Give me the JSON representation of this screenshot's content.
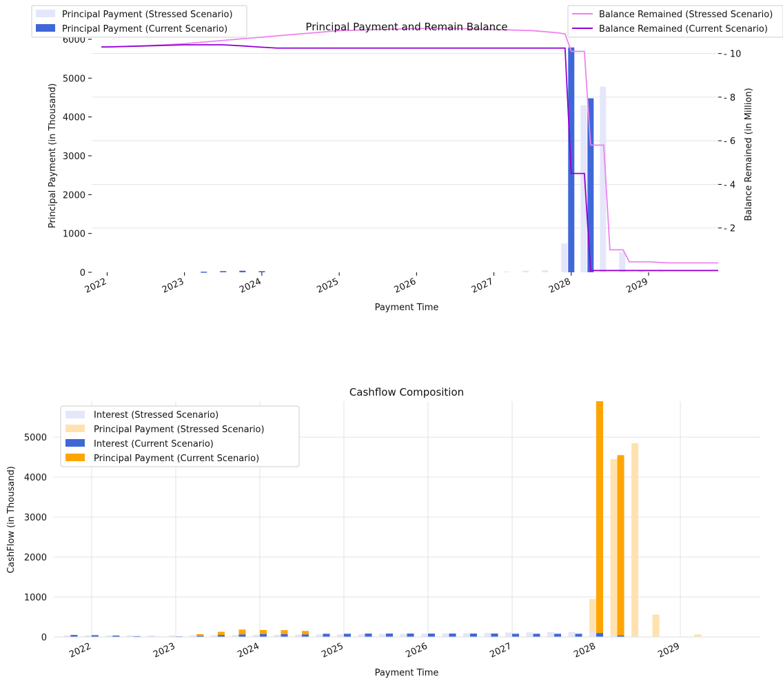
{
  "colors": {
    "stressed_principal": "#e4e6fa",
    "current_principal": "#3f67d8",
    "stressed_balance": "#ee82ee",
    "current_balance": "#9400d3",
    "stressed_interest": "#e4e6fa",
    "current_interest": "#3f67d8",
    "stressed_principal_cf": "#ffe2b0",
    "current_principal_cf": "#ffa500"
  },
  "chart_data": [
    {
      "type": "bar",
      "title": "Principal Payment and Remain Balance",
      "xlabel": "Payment Time",
      "ylabel": "Principal Payment (in Thousand)",
      "ylabel_right": "Balance Remained (in Million)",
      "ylim": [
        0,
        6000
      ],
      "ylim_right": [
        0,
        11
      ],
      "xlim": [
        2021.8,
        2029.9
      ],
      "x_ticks": [
        "2022",
        "2023",
        "2024",
        "2025",
        "2026",
        "2027",
        "2028",
        "2029"
      ],
      "y_ticks": [
        "0",
        "1000",
        "2000",
        "3000",
        "4000",
        "5000",
        "6000"
      ],
      "y_ticks_right": [
        "2",
        "4",
        "6",
        "8",
        "10"
      ],
      "legend_left": [
        "Principal Payment (Stressed Scenario)",
        "Principal Payment (Current Scenario)"
      ],
      "legend_right": [
        "Balance Remained (Stressed Scenario)",
        "Balance Remained (Current Scenario)"
      ],
      "bars_stressed": {
        "name": "Principal Payment (Stressed Scenario)",
        "x": [
          2027.16,
          2027.41,
          2027.66,
          2027.91,
          2028.16,
          2028.41,
          2028.66,
          2028.91,
          2029.16
        ],
        "values": [
          20,
          40,
          50,
          740,
          4300,
          4780,
          520,
          30,
          20
        ]
      },
      "bars_current": {
        "name": "Principal Payment (Current Scenario)",
        "x": [
          2023.25,
          2023.5,
          2023.75,
          2024.0,
          2028.0,
          2028.25
        ],
        "values": [
          15,
          30,
          40,
          30,
          5790,
          4480
        ]
      },
      "line_stressed": {
        "name": "Balance Remained (Stressed Scenario)",
        "x": [
          2021.6,
          2022.0,
          2022.5,
          2023.0,
          2023.5,
          2024.0,
          2024.5,
          2025.0,
          2025.5,
          2026.0,
          2026.5,
          2027.0,
          2027.5,
          2027.83,
          2027.92,
          2028.0,
          2028.08,
          2028.17,
          2028.25,
          2028.33,
          2028.42,
          2028.5,
          2028.58,
          2028.67,
          2028.75,
          2028.83,
          2029.0,
          2029.25,
          2029.5,
          2029.75,
          2029.9
        ],
        "values": [
          10.3,
          10.3,
          10.35,
          10.45,
          10.6,
          10.75,
          10.9,
          11.05,
          11.1,
          11.15,
          11.15,
          11.1,
          11.05,
          10.95,
          10.9,
          10.1,
          10.1,
          10.1,
          5.8,
          5.8,
          5.8,
          1.0,
          1.0,
          1.0,
          0.45,
          0.45,
          0.45,
          0.4,
          0.4,
          0.4,
          0.4
        ]
      },
      "line_current": {
        "name": "Balance Remained (Current Scenario)",
        "x": [
          2021.6,
          2022.0,
          2022.5,
          2023.0,
          2023.25,
          2023.5,
          2023.75,
          2023.95,
          2024.2,
          2024.5,
          2025.0,
          2026.0,
          2027.0,
          2027.5,
          2027.92,
          2028.0,
          2028.08,
          2028.17,
          2028.25,
          2028.33,
          2028.5,
          2029.0,
          2029.9
        ],
        "values": [
          10.3,
          10.3,
          10.35,
          10.4,
          10.4,
          10.4,
          10.35,
          10.3,
          10.25,
          10.25,
          10.25,
          10.25,
          10.25,
          10.25,
          10.25,
          4.5,
          4.5,
          4.5,
          0.05,
          0.05,
          0.05,
          0.05,
          0.05
        ]
      }
    },
    {
      "type": "bar",
      "title": "Cashflow Composition",
      "xlabel": "Payment Time",
      "ylabel": "CashFlow (in Thousand)",
      "ylim": [
        0,
        5900
      ],
      "xlim": [
        2021.55,
        2029.95
      ],
      "x_ticks": [
        "2022",
        "2023",
        "2024",
        "2025",
        "2026",
        "2027",
        "2028",
        "2029"
      ],
      "y_ticks": [
        "0",
        "1000",
        "2000",
        "3000",
        "4000",
        "5000"
      ],
      "legend": [
        "Interest (Stressed Scenario)",
        "Principal Payment (Stressed Scenario)",
        "Interest (Current Scenario)",
        "Principal Payment (Current Scenario)"
      ],
      "periods": [
        2021.75,
        2022.0,
        2022.25,
        2022.5,
        2022.75,
        2023.0,
        2023.25,
        2023.5,
        2023.75,
        2024.0,
        2024.25,
        2024.5,
        2024.75,
        2025.0,
        2025.25,
        2025.5,
        2025.75,
        2026.0,
        2026.25,
        2026.5,
        2026.75,
        2027.0,
        2027.25,
        2027.5,
        2027.75,
        2028.0,
        2028.25,
        2028.5,
        2028.75,
        2029.0,
        2029.25
      ],
      "series": [
        {
          "name": "Interest (Stressed Scenario)",
          "values": [
            40,
            40,
            40,
            40,
            40,
            40,
            45,
            45,
            50,
            55,
            55,
            60,
            65,
            65,
            70,
            75,
            80,
            85,
            90,
            95,
            100,
            110,
            115,
            120,
            125,
            130,
            40,
            20,
            10,
            5,
            5
          ]
        },
        {
          "name": "Principal Payment (Stressed Scenario)",
          "values": [
            0,
            0,
            0,
            0,
            0,
            0,
            0,
            0,
            0,
            0,
            0,
            0,
            0,
            0,
            0,
            0,
            0,
            0,
            0,
            0,
            0,
            0,
            0,
            0,
            0,
            820,
            4410,
            4830,
            550,
            0,
            60
          ]
        },
        {
          "name": "Interest (Current Scenario)",
          "values": [
            50,
            45,
            35,
            20,
            10,
            15,
            30,
            50,
            65,
            75,
            70,
            65,
            80,
            80,
            85,
            85,
            85,
            85,
            85,
            85,
            85,
            80,
            80,
            80,
            80,
            100,
            40,
            0,
            0,
            0,
            0
          ]
        },
        {
          "name": "Principal Payment (Current Scenario)",
          "values": [
            0,
            0,
            0,
            0,
            0,
            0,
            40,
            80,
            120,
            100,
            100,
            85,
            0,
            0,
            0,
            0,
            0,
            0,
            0,
            0,
            0,
            0,
            0,
            0,
            0,
            5840,
            4510,
            0,
            0,
            0,
            0
          ]
        }
      ]
    }
  ]
}
